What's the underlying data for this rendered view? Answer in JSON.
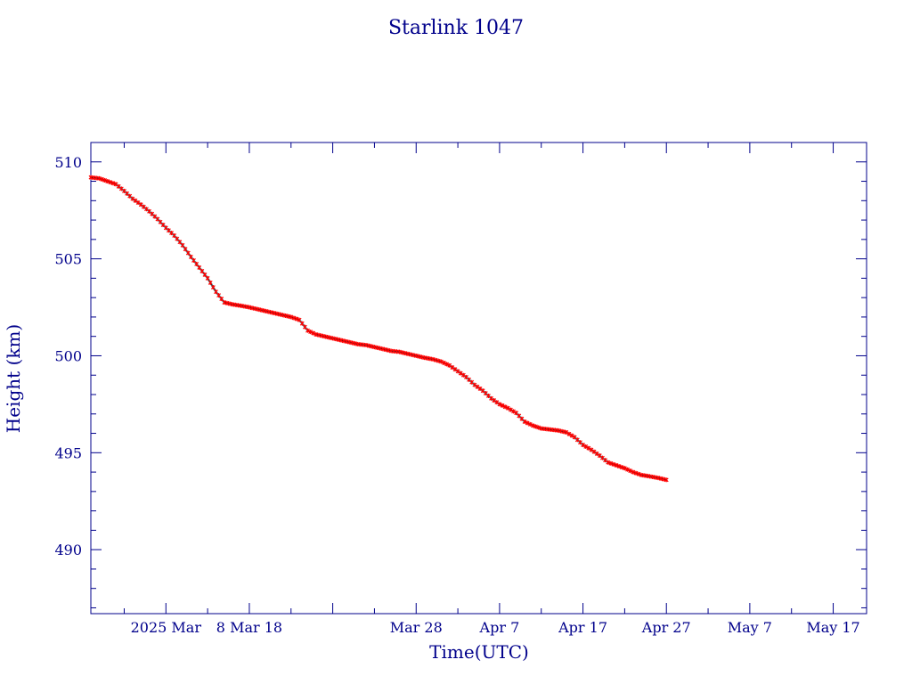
{
  "colors": {
    "axis": "#00008b",
    "fit_line": "#00e5ee",
    "trace_line": "#000000",
    "marker": "#ff0000"
  },
  "chart_data": {
    "type": "line",
    "title": "Starlink 1047",
    "xlabel": "Time(UTC)",
    "ylabel": "Height (km)",
    "x_unit": "days",
    "xlim": [
      "2025-02-17",
      "2025-05-21"
    ],
    "ylim": [
      486.7,
      511.0
    ],
    "grid": false,
    "legend": "none",
    "x_ticks": [
      {
        "date": "2025-02-26",
        "label": "2025 Mar"
      },
      {
        "date": "2025-03-08",
        "label": "8 Mar 18"
      },
      {
        "date": "2025-03-28",
        "label": "Mar 28"
      },
      {
        "date": "2025-04-07",
        "label": "Apr  7"
      },
      {
        "date": "2025-04-17",
        "label": "Apr 17"
      },
      {
        "date": "2025-04-27",
        "label": "Apr 27"
      },
      {
        "date": "2025-05-07",
        "label": "May  7"
      },
      {
        "date": "2025-05-17",
        "label": "May 17"
      }
    ],
    "y_ticks": [
      {
        "value": 490,
        "label": "490"
      },
      {
        "value": 495,
        "label": "495"
      },
      {
        "value": 500,
        "label": "500"
      },
      {
        "value": 505,
        "label": "505"
      },
      {
        "value": 510,
        "label": "510"
      }
    ],
    "series": [
      {
        "points": [
          [
            "2025-02-17",
            509.2
          ],
          [
            "2025-02-18",
            509.15
          ],
          [
            "2025-02-19",
            509.0
          ],
          [
            "2025-02-20",
            508.85
          ],
          [
            "2025-02-21",
            508.5
          ],
          [
            "2025-02-22",
            508.1
          ],
          [
            "2025-02-23",
            507.8
          ],
          [
            "2025-02-24",
            507.45
          ],
          [
            "2025-02-25",
            507.05
          ],
          [
            "2025-02-26",
            506.6
          ],
          [
            "2025-02-27",
            506.2
          ],
          [
            "2025-02-28",
            505.7
          ],
          [
            "2025-03-01",
            505.1
          ],
          [
            "2025-03-02",
            504.55
          ],
          [
            "2025-03-03",
            504.0
          ],
          [
            "2025-03-04",
            503.3
          ],
          [
            "2025-03-05",
            502.75
          ],
          [
            "2025-03-06",
            502.65
          ],
          [
            "2025-03-07",
            502.58
          ],
          [
            "2025-03-08",
            502.5
          ],
          [
            "2025-03-09",
            502.4
          ],
          [
            "2025-03-10",
            502.3
          ],
          [
            "2025-03-11",
            502.2
          ],
          [
            "2025-03-12",
            502.1
          ],
          [
            "2025-03-13",
            502.0
          ],
          [
            "2025-03-14",
            501.85
          ],
          [
            "2025-03-15",
            501.3
          ],
          [
            "2025-03-16",
            501.1
          ],
          [
            "2025-03-17",
            501.0
          ],
          [
            "2025-03-18",
            500.9
          ],
          [
            "2025-03-19",
            500.8
          ],
          [
            "2025-03-20",
            500.7
          ],
          [
            "2025-03-21",
            500.6
          ],
          [
            "2025-03-22",
            500.55
          ],
          [
            "2025-03-23",
            500.45
          ],
          [
            "2025-03-24",
            500.35
          ],
          [
            "2025-03-25",
            500.25
          ],
          [
            "2025-03-26",
            500.2
          ],
          [
            "2025-03-27",
            500.1
          ],
          [
            "2025-03-28",
            500.0
          ],
          [
            "2025-03-29",
            499.9
          ],
          [
            "2025-03-30",
            499.82
          ],
          [
            "2025-03-31",
            499.7
          ],
          [
            "2025-04-01",
            499.5
          ],
          [
            "2025-04-02",
            499.2
          ],
          [
            "2025-04-03",
            498.9
          ],
          [
            "2025-04-04",
            498.5
          ],
          [
            "2025-04-05",
            498.2
          ],
          [
            "2025-04-06",
            497.8
          ],
          [
            "2025-04-07",
            497.5
          ],
          [
            "2025-04-08",
            497.3
          ],
          [
            "2025-04-09",
            497.05
          ],
          [
            "2025-04-10",
            496.6
          ],
          [
            "2025-04-11",
            496.4
          ],
          [
            "2025-04-12",
            496.25
          ],
          [
            "2025-04-13",
            496.2
          ],
          [
            "2025-04-14",
            496.15
          ],
          [
            "2025-04-15",
            496.05
          ],
          [
            "2025-04-16",
            495.8
          ],
          [
            "2025-04-17",
            495.4
          ],
          [
            "2025-04-18",
            495.15
          ],
          [
            "2025-04-19",
            494.85
          ],
          [
            "2025-04-20",
            494.5
          ],
          [
            "2025-04-21",
            494.35
          ],
          [
            "2025-04-22",
            494.2
          ],
          [
            "2025-04-23",
            494.0
          ],
          [
            "2025-04-24",
            493.85
          ],
          [
            "2025-04-25",
            493.78
          ],
          [
            "2025-04-26",
            493.7
          ],
          [
            "2025-04-27",
            493.6
          ]
        ]
      }
    ]
  }
}
